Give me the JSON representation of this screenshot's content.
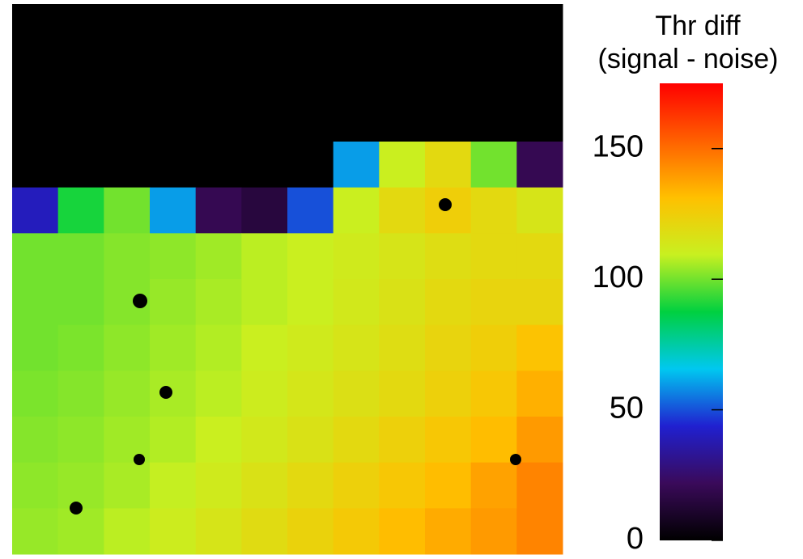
{
  "chart_data": {
    "type": "heatmap",
    "z": [
      [
        0,
        0,
        0,
        0,
        0,
        0,
        0,
        0,
        0,
        0,
        0,
        0
      ],
      [
        0,
        0,
        0,
        0,
        0,
        0,
        0,
        0,
        0,
        0,
        0,
        0
      ],
      [
        0,
        0,
        0,
        0,
        0,
        0,
        0,
        0,
        0,
        0,
        0,
        0
      ],
      [
        0,
        0,
        0,
        0,
        0,
        0,
        0,
        60,
        110,
        120,
        100,
        20
      ],
      [
        40,
        90,
        100,
        60,
        20,
        15,
        50,
        110,
        120,
        125,
        120,
        115
      ],
      [
        100,
        100,
        102,
        103,
        105,
        108,
        110,
        112,
        115,
        118,
        120,
        120
      ],
      [
        100,
        100,
        102,
        104,
        106,
        108,
        110,
        113,
        116,
        120,
        122,
        122
      ],
      [
        100,
        101,
        103,
        105,
        107,
        110,
        112,
        115,
        118,
        122,
        125,
        130
      ],
      [
        101,
        102,
        104,
        106,
        108,
        111,
        114,
        117,
        120,
        124,
        128,
        135
      ],
      [
        102,
        103,
        105,
        107,
        110,
        113,
        116,
        120,
        124,
        128,
        132,
        140
      ],
      [
        103,
        104,
        106,
        109,
        112,
        116,
        120,
        124,
        128,
        132,
        138,
        145
      ],
      [
        104,
        105,
        108,
        111,
        115,
        119,
        123,
        127,
        132,
        136,
        140,
        145
      ]
    ],
    "colorbar_title": [
      "Thr diff",
      "(signal - noise)"
    ],
    "clim": [
      0,
      175
    ],
    "cticks": [
      0,
      50,
      100,
      150
    ],
    "colormap": [
      "#000000",
      "#3a0a5a",
      "#2020d0",
      "#00c8f0",
      "#00d040",
      "#c8f020",
      "#ffc000",
      "#ff6000",
      "#ff0000"
    ]
  }
}
